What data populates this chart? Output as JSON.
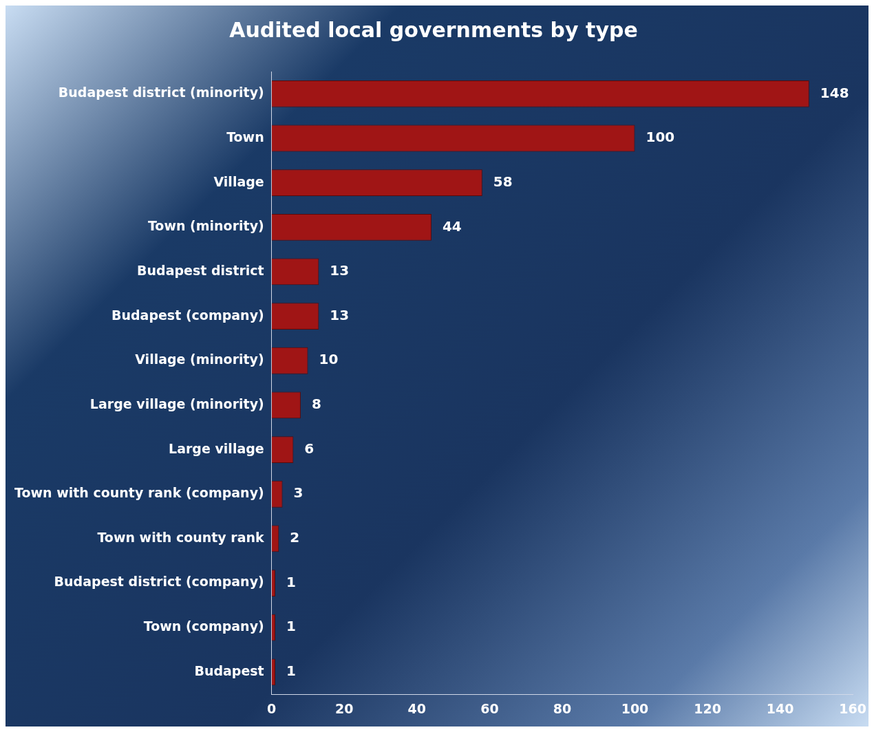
{
  "chart_data": {
    "type": "bar",
    "orientation": "horizontal",
    "title": "Audited local governments by type",
    "categories": [
      "Budapest district (minority)",
      "Town",
      "Village",
      "Town (minority)",
      "Budapest district",
      "Budapest (company)",
      "Village (minority)",
      "Large village (minority)",
      "Large village",
      "Town with county rank (company)",
      "Town with county rank",
      "Budapest district (company)",
      "Town (company)",
      "Budapest"
    ],
    "values": [
      148,
      100,
      58,
      44,
      13,
      13,
      10,
      8,
      6,
      3,
      2,
      1,
      1,
      1
    ],
    "color": "#a01515",
    "xlim": [
      0,
      160
    ],
    "xticks": [
      0,
      20,
      40,
      60,
      80,
      100,
      120,
      140,
      160
    ],
    "data_labels": true,
    "grid": false,
    "legend": false
  }
}
